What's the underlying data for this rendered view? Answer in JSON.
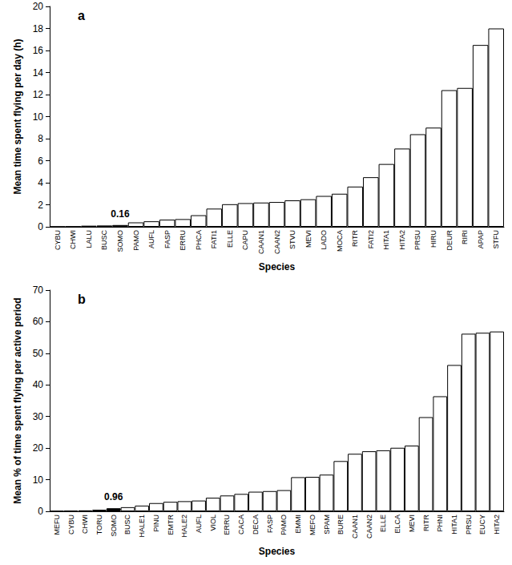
{
  "chart_data": [
    {
      "type": "bar",
      "title": "a",
      "x_label": "Species",
      "y_label": "Mean time spent flying per day (h)",
      "categories": [
        "CYBU",
        "CHWI",
        "LALU",
        "BUSC",
        "SOMO",
        "PAMO",
        "AUFL",
        "FASP",
        "ERRU",
        "PHCA",
        "FATI1",
        "ELLE",
        "CAPU",
        "CAAN1",
        "CAAN2",
        "STVU",
        "MEVI",
        "LADO",
        "MOCA",
        "RITR",
        "FATI2",
        "HITA1",
        "HITA2",
        "PRSU",
        "HIRU",
        "DEUR",
        "RIRI",
        "APAP",
        "STFU"
      ],
      "values": [
        0.02,
        0.03,
        0.1,
        0.12,
        0.16,
        0.4,
        0.5,
        0.65,
        0.7,
        1.05,
        1.65,
        2.05,
        2.15,
        2.2,
        2.25,
        2.4,
        2.5,
        2.8,
        3.0,
        3.65,
        4.5,
        5.7,
        7.1,
        8.4,
        9.0,
        12.4,
        12.6,
        16.5,
        18.0
      ],
      "colors": [
        "#ffffff",
        "#ffffff",
        "#ffffff",
        "#ffffff",
        "#000000",
        "#ffffff",
        "#ffffff",
        "#ffffff",
        "#ffffff",
        "#ffffff",
        "#ffffff",
        "#ffffff",
        "#ffffff",
        "#ffffff",
        "#ffffff",
        "#ffffff",
        "#ffffff",
        "#ffffff",
        "#ffffff",
        "#ffffff",
        "#ffffff",
        "#ffffff",
        "#ffffff",
        "#ffffff",
        "#ffffff",
        "#ffffff",
        "#ffffff",
        "#ffffff",
        "#ffffff"
      ],
      "annotations": [
        {
          "text": "0.16",
          "category": "SOMO"
        }
      ],
      "ylim": [
        0,
        20
      ],
      "yticks": [
        0,
        2,
        4,
        6,
        8,
        10,
        12,
        14,
        16,
        18,
        20
      ],
      "grid": false
    },
    {
      "type": "bar",
      "title": "b",
      "x_label": "Species",
      "y_label": "Mean % of time spent flying per active period",
      "categories": [
        "MEFU",
        "CYBU",
        "CHWI",
        "TORU",
        "SOMO",
        "BUSC",
        "HALE1",
        "PINU",
        "EMTR",
        "HALE2",
        "AUFL",
        "VIOL",
        "ERRU",
        "CACA",
        "DECA",
        "FASP",
        "PAMO",
        "EMMI",
        "MEFO",
        "SPAM",
        "BURE",
        "CAAN1",
        "CAAN2",
        "ELLE",
        "ELCA",
        "MEVI",
        "RITR",
        "PHNI",
        "HITA1",
        "PRSU",
        "EUCY",
        "HITA2"
      ],
      "values": [
        0.1,
        0.2,
        0.3,
        0.5,
        0.96,
        1.3,
        1.8,
        2.6,
        3.0,
        3.2,
        3.4,
        4.3,
        5.0,
        5.5,
        6.2,
        6.4,
        6.7,
        10.8,
        10.9,
        11.6,
        15.9,
        18.2,
        19.0,
        19.3,
        20.1,
        20.8,
        29.8,
        36.4,
        46.3,
        56.2,
        56.5,
        56.9
      ],
      "colors": [
        "#ffffff",
        "#ffffff",
        "#ffffff",
        "#ffffff",
        "#000000",
        "#ffffff",
        "#ffffff",
        "#ffffff",
        "#ffffff",
        "#ffffff",
        "#ffffff",
        "#ffffff",
        "#ffffff",
        "#ffffff",
        "#ffffff",
        "#ffffff",
        "#ffffff",
        "#ffffff",
        "#ffffff",
        "#ffffff",
        "#ffffff",
        "#ffffff",
        "#ffffff",
        "#ffffff",
        "#ffffff",
        "#ffffff",
        "#ffffff",
        "#ffffff",
        "#ffffff",
        "#ffffff",
        "#ffffff",
        "#ffffff"
      ],
      "annotations": [
        {
          "text": "0.96",
          "category": "SOMO"
        }
      ],
      "ylim": [
        0,
        70
      ],
      "yticks": [
        0,
        10,
        20,
        30,
        40,
        50,
        60,
        70
      ],
      "grid": false
    }
  ]
}
